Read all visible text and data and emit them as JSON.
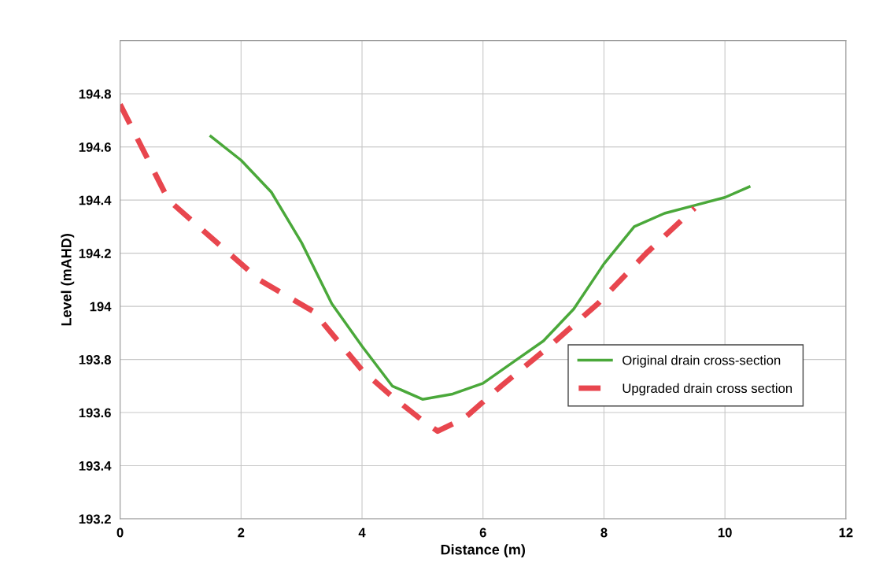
{
  "chart_data": {
    "type": "line",
    "xlabel": "Distance (m)",
    "ylabel": "Level (mAHD)",
    "xlim": [
      0,
      12
    ],
    "xticks": [
      0,
      2,
      4,
      6,
      8,
      10,
      12
    ],
    "ylim": [
      193.2,
      195.0
    ],
    "yticks": [
      193.2,
      193.4,
      193.6,
      193.8,
      {
        "value": 194,
        "label": "194"
      },
      194.2,
      194.4,
      194.6,
      194.8
    ],
    "grid": true,
    "legend": "right",
    "marker": "none",
    "series": [
      {
        "name": "Original drain cross-section",
        "color": "#4aa83a",
        "line_style": "solid",
        "x": [
          1.5,
          2.0,
          2.5,
          3.0,
          3.5,
          4.0,
          4.5,
          5.0,
          5.5,
          6.0,
          6.5,
          7.0,
          7.5,
          8.0,
          8.5,
          9.0,
          9.5,
          10.0,
          10.4
        ],
        "values": [
          194.64,
          194.55,
          194.43,
          194.24,
          194.01,
          193.85,
          193.7,
          193.65,
          193.67,
          193.71,
          193.79,
          193.87,
          193.99,
          194.16,
          194.3,
          194.35,
          194.38,
          194.41,
          194.45
        ]
      },
      {
        "name": "Upgraded drain cross section",
        "color": "#e8464e",
        "line_style": "dashed",
        "x": [
          0,
          0.4,
          0.8,
          1.5,
          2.3,
          3.2,
          4.0,
          4.5,
          5.0,
          5.25,
          5.7,
          6.3,
          7.1,
          7.9,
          8.7,
          9.5
        ],
        "values": [
          194.76,
          194.58,
          194.4,
          194.26,
          194.1,
          193.98,
          193.76,
          193.66,
          193.57,
          193.53,
          193.58,
          193.7,
          193.85,
          194.01,
          194.2,
          194.37
        ]
      }
    ]
  }
}
